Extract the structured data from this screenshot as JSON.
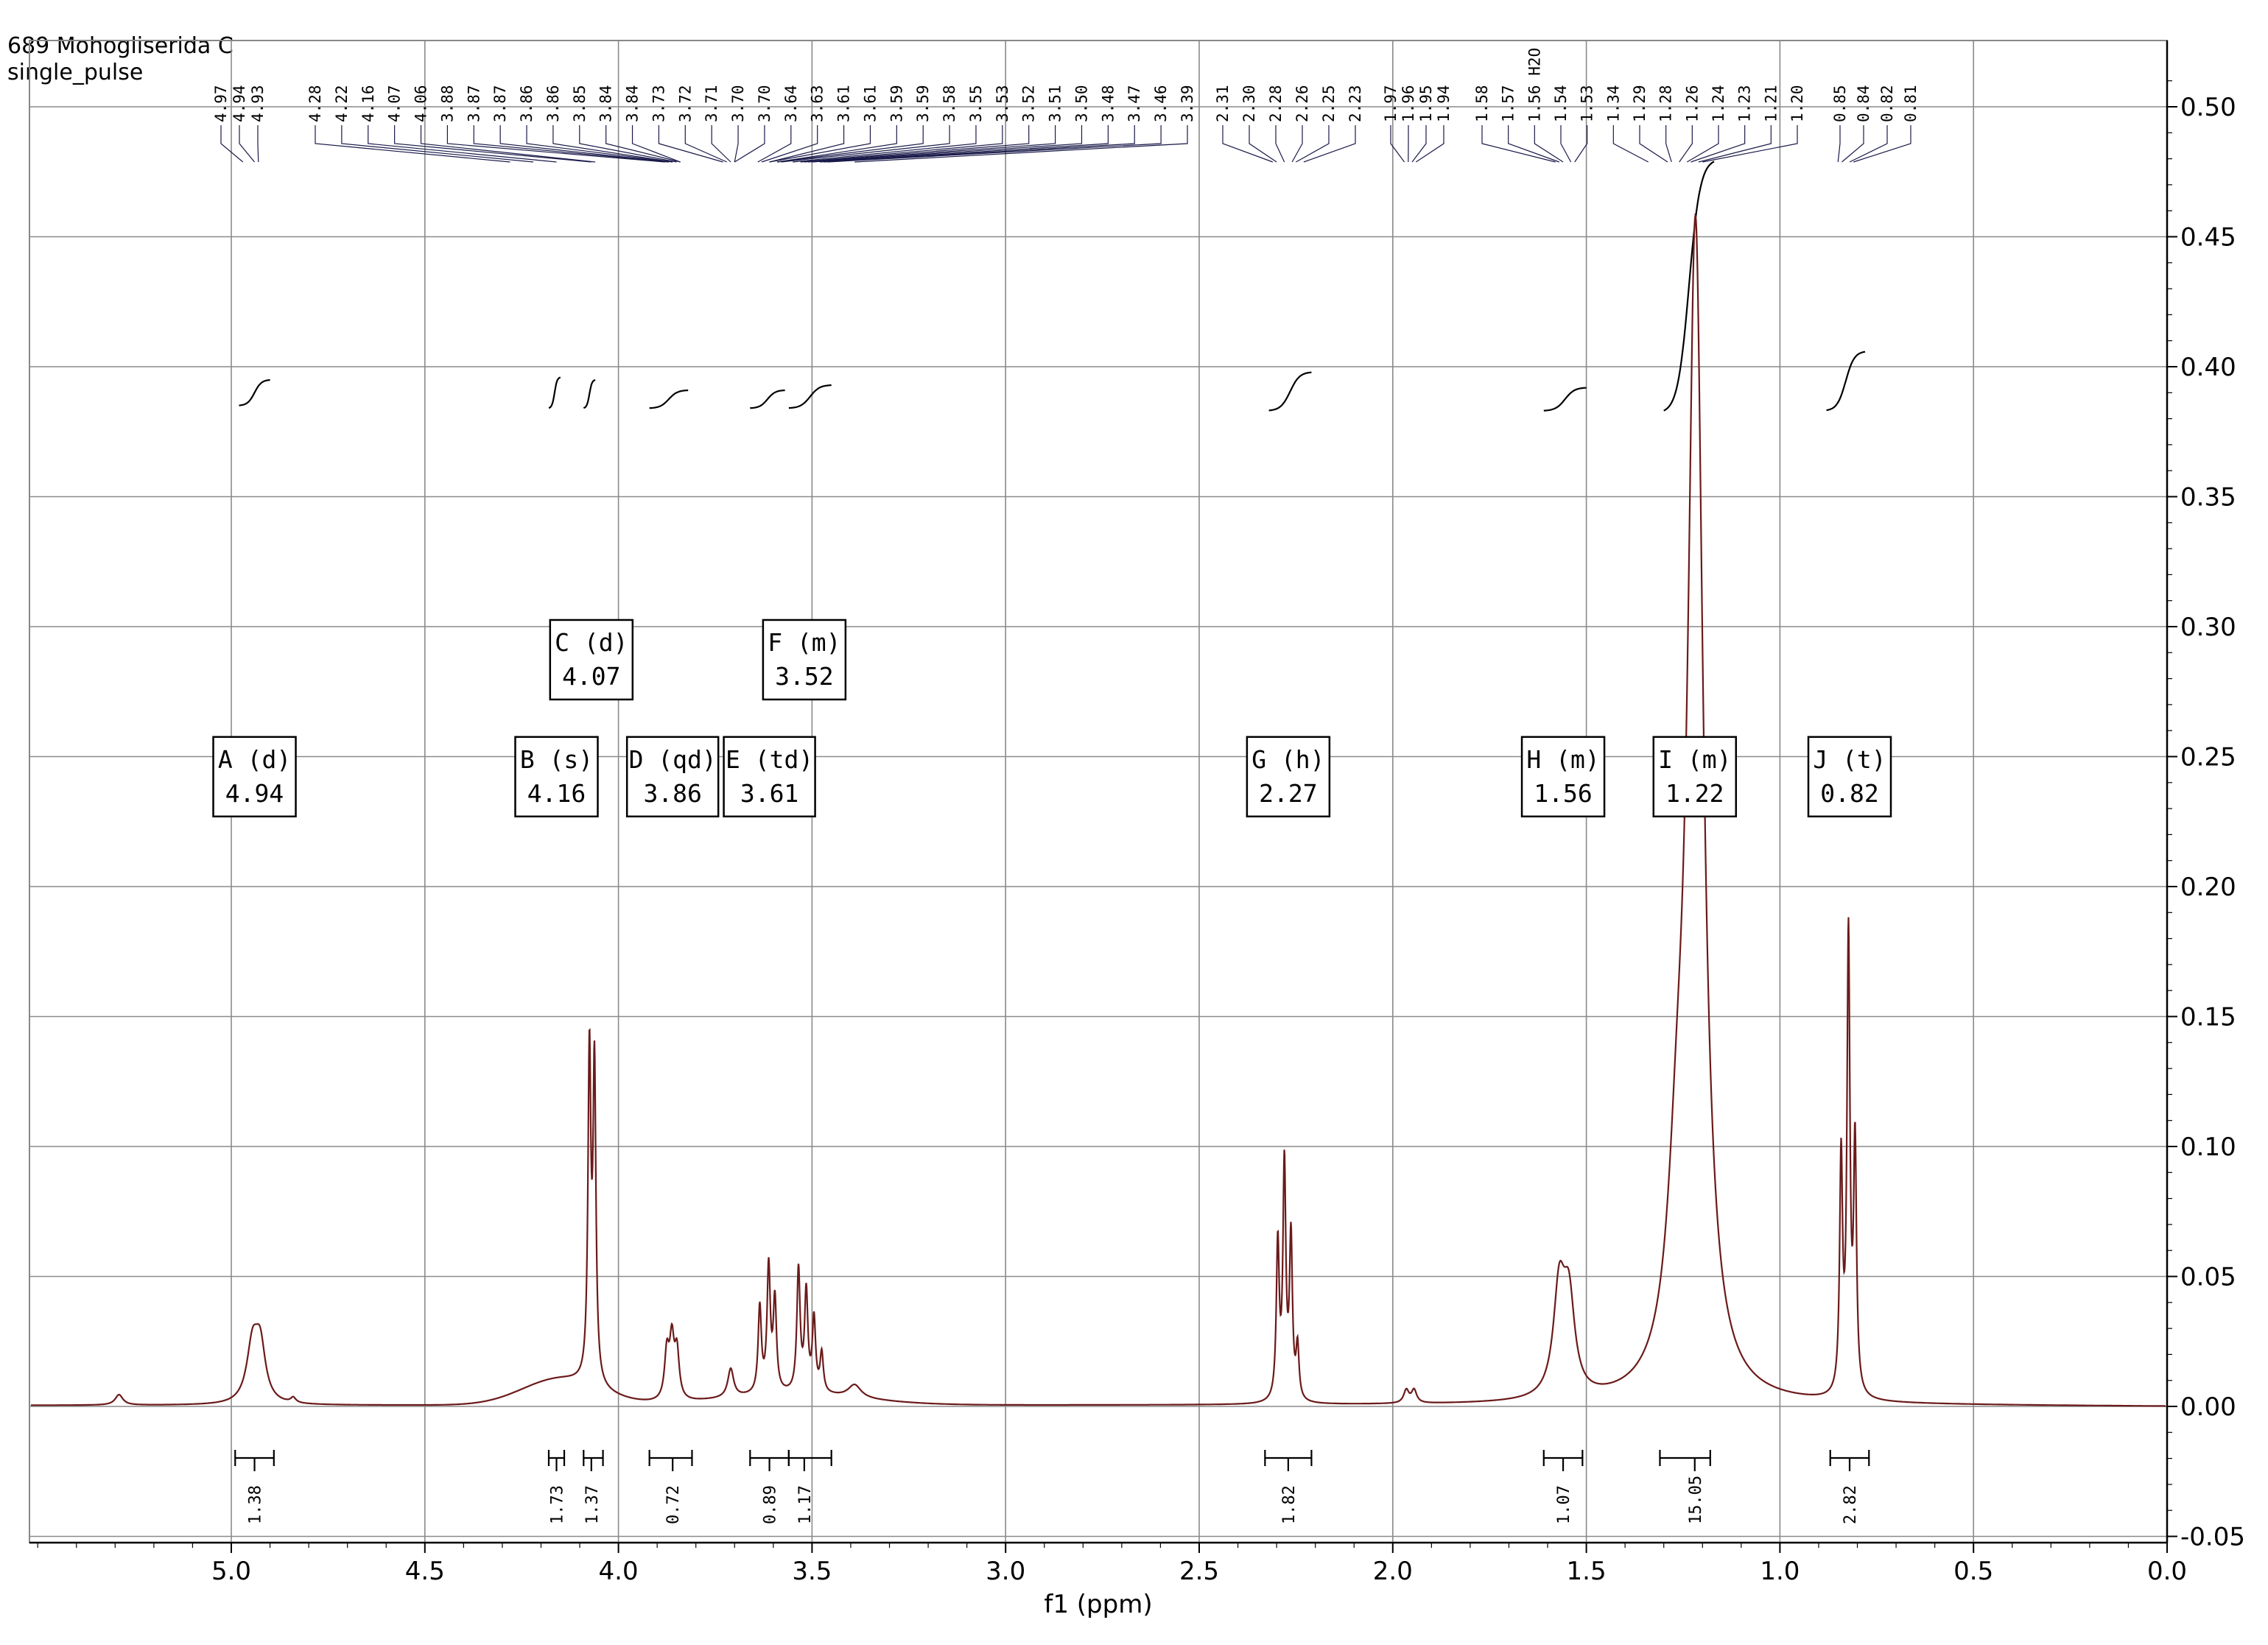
{
  "header": {
    "sample": "689 Mohogliserida C",
    "pulse": "single_pulse"
  },
  "chart_data": {
    "type": "line",
    "xlabel": "f1 (ppm)",
    "xlim": [
      5.5,
      0.0
    ],
    "ylim": [
      -0.05,
      0.52
    ],
    "x_ticks": [
      "5.0",
      "4.5",
      "4.0",
      "3.5",
      "3.0",
      "2.5",
      "2.0",
      "1.5",
      "1.0",
      "0.5",
      "0.0"
    ],
    "x_tick_values": [
      5.0,
      4.5,
      4.0,
      3.5,
      3.0,
      2.5,
      2.0,
      1.5,
      1.0,
      0.5,
      0.0
    ],
    "y_ticks": [
      "-0.05",
      "0.00",
      "0.05",
      "0.10",
      "0.15",
      "0.20",
      "0.25",
      "0.30",
      "0.35",
      "0.40",
      "0.45",
      "0.50"
    ],
    "y_tick_values": [
      -0.05,
      0.0,
      0.05,
      0.1,
      0.15,
      0.2,
      0.25,
      0.3,
      0.35,
      0.4,
      0.45,
      0.5
    ],
    "peak_labels": [
      "4.97",
      "4.94",
      "4.93",
      "4.28",
      "4.22",
      "4.16",
      "4.07",
      "4.06",
      "3.88",
      "3.87",
      "3.87",
      "3.86",
      "3.86",
      "3.85",
      "3.84",
      "3.84",
      "3.73",
      "3.72",
      "3.71",
      "3.70",
      "3.70",
      "3.64",
      "3.63",
      "3.61",
      "3.61",
      "3.59",
      "3.59",
      "3.58",
      "3.55",
      "3.53",
      "3.52",
      "3.51",
      "3.50",
      "3.48",
      "3.47",
      "3.46",
      "3.39",
      "2.31",
      "2.30",
      "2.28",
      "2.26",
      "2.25",
      "2.23",
      "1.97",
      "1.96",
      "1.95",
      "1.94",
      "1.58",
      "1.57",
      "1.56 H2O",
      "1.54",
      "1.53",
      "1.34",
      "1.29",
      "1.28",
      "1.26",
      "1.24",
      "1.23",
      "1.21",
      "1.20",
      "0.85",
      "0.84",
      "0.82",
      "0.81"
    ],
    "multiplets": [
      {
        "label": "A (d)",
        "shift": "4.94",
        "x": 4.94,
        "y": 0.24
      },
      {
        "label": "B (s)",
        "shift": "4.16",
        "x": 4.16,
        "y": 0.24
      },
      {
        "label": "C (d)",
        "shift": "4.07",
        "x": 4.07,
        "y": 0.285
      },
      {
        "label": "D (qd)",
        "shift": "3.86",
        "x": 3.86,
        "y": 0.24
      },
      {
        "label": "E (td)",
        "shift": "3.61",
        "x": 3.61,
        "y": 0.24
      },
      {
        "label": "F (m)",
        "shift": "3.52",
        "x": 3.52,
        "y": 0.285
      },
      {
        "label": "G (h)",
        "shift": "2.27",
        "x": 2.27,
        "y": 0.24
      },
      {
        "label": "H (m)",
        "shift": "1.56",
        "x": 1.56,
        "y": 0.24
      },
      {
        "label": "I (m)",
        "shift": "1.22",
        "x": 1.22,
        "y": 0.24
      },
      {
        "label": "J (t)",
        "shift": "0.82",
        "x": 0.82,
        "y": 0.24
      }
    ],
    "integrals": [
      {
        "value": "1.38",
        "from": 4.99,
        "to": 4.89,
        "center": 4.94
      },
      {
        "value": "1.73",
        "from": 4.18,
        "to": 4.14,
        "center": 4.16
      },
      {
        "value": "1.37",
        "from": 4.09,
        "to": 4.04,
        "center": 4.07
      },
      {
        "value": "0.72",
        "from": 3.92,
        "to": 3.81,
        "center": 3.86
      },
      {
        "value": "0.89",
        "from": 3.66,
        "to": 3.56,
        "center": 3.61
      },
      {
        "value": "1.17",
        "from": 3.56,
        "to": 3.45,
        "center": 3.52
      },
      {
        "value": "1.82",
        "from": 2.33,
        "to": 2.21,
        "center": 2.27
      },
      {
        "value": "1.07",
        "from": 1.61,
        "to": 1.51,
        "center": 1.56
      },
      {
        "value": "15.05",
        "from": 1.31,
        "to": 1.18,
        "center": 1.22
      },
      {
        "value": "2.82",
        "from": 0.87,
        "to": 0.77,
        "center": 0.82
      }
    ],
    "peaks": [
      {
        "x": 5.29,
        "h": 0.004,
        "w": 0.012
      },
      {
        "x": 4.945,
        "h": 0.022,
        "w": 0.018
      },
      {
        "x": 4.925,
        "h": 0.02,
        "w": 0.016
      },
      {
        "x": 4.84,
        "h": 0.002,
        "w": 0.008
      },
      {
        "x": 4.075,
        "h": 0.125,
        "w": 0.0045
      },
      {
        "x": 4.062,
        "h": 0.12,
        "w": 0.0045
      },
      {
        "x": 3.875,
        "h": 0.018,
        "w": 0.007
      },
      {
        "x": 3.862,
        "h": 0.022,
        "w": 0.007
      },
      {
        "x": 3.849,
        "h": 0.018,
        "w": 0.007
      },
      {
        "x": 3.71,
        "h": 0.011,
        "w": 0.009
      },
      {
        "x": 3.635,
        "h": 0.033,
        "w": 0.005
      },
      {
        "x": 3.612,
        "h": 0.048,
        "w": 0.005
      },
      {
        "x": 3.596,
        "h": 0.035,
        "w": 0.005
      },
      {
        "x": 3.535,
        "h": 0.047,
        "w": 0.005
      },
      {
        "x": 3.515,
        "h": 0.038,
        "w": 0.005
      },
      {
        "x": 3.495,
        "h": 0.028,
        "w": 0.005
      },
      {
        "x": 3.475,
        "h": 0.015,
        "w": 0.005
      },
      {
        "x": 3.39,
        "h": 0.005,
        "w": 0.02
      },
      {
        "x": 2.297,
        "h": 0.06,
        "w": 0.0045
      },
      {
        "x": 2.28,
        "h": 0.09,
        "w": 0.0045
      },
      {
        "x": 2.263,
        "h": 0.062,
        "w": 0.0045
      },
      {
        "x": 2.246,
        "h": 0.02,
        "w": 0.0045
      },
      {
        "x": 1.965,
        "h": 0.005,
        "w": 0.008
      },
      {
        "x": 1.945,
        "h": 0.005,
        "w": 0.008
      },
      {
        "x": 1.57,
        "h": 0.04,
        "w": 0.018
      },
      {
        "x": 1.545,
        "h": 0.035,
        "w": 0.018
      },
      {
        "x": 1.265,
        "h": 0.06,
        "w": 0.03
      },
      {
        "x": 1.218,
        "h": 0.44,
        "w": 0.024
      },
      {
        "x": 0.842,
        "h": 0.09,
        "w": 0.0045
      },
      {
        "x": 0.823,
        "h": 0.175,
        "w": 0.0045
      },
      {
        "x": 0.806,
        "h": 0.095,
        "w": 0.0045
      }
    ],
    "broad_humps": [
      {
        "x": 4.15,
        "h": 0.01,
        "w": 0.14
      },
      {
        "x": 3.55,
        "h": 0.004,
        "w": 0.25
      }
    ],
    "integral_curves": [
      {
        "from": 4.98,
        "to": 4.9,
        "y0": 0.385,
        "y1": 0.395
      },
      {
        "from": 4.18,
        "to": 4.15,
        "y0": 0.384,
        "y1": 0.396
      },
      {
        "from": 4.09,
        "to": 4.06,
        "y0": 0.384,
        "y1": 0.395
      },
      {
        "from": 3.92,
        "to": 3.82,
        "y0": 0.384,
        "y1": 0.391
      },
      {
        "from": 3.66,
        "to": 3.57,
        "y0": 0.384,
        "y1": 0.391
      },
      {
        "from": 3.56,
        "to": 3.45,
        "y0": 0.384,
        "y1": 0.393
      },
      {
        "from": 2.32,
        "to": 2.21,
        "y0": 0.383,
        "y1": 0.398
      },
      {
        "from": 1.61,
        "to": 1.5,
        "y0": 0.383,
        "y1": 0.392
      },
      {
        "from": 1.3,
        "to": 1.17,
        "y0": 0.382,
        "y1": 0.48
      },
      {
        "from": 0.88,
        "to": 0.78,
        "y0": 0.383,
        "y1": 0.406
      }
    ]
  }
}
